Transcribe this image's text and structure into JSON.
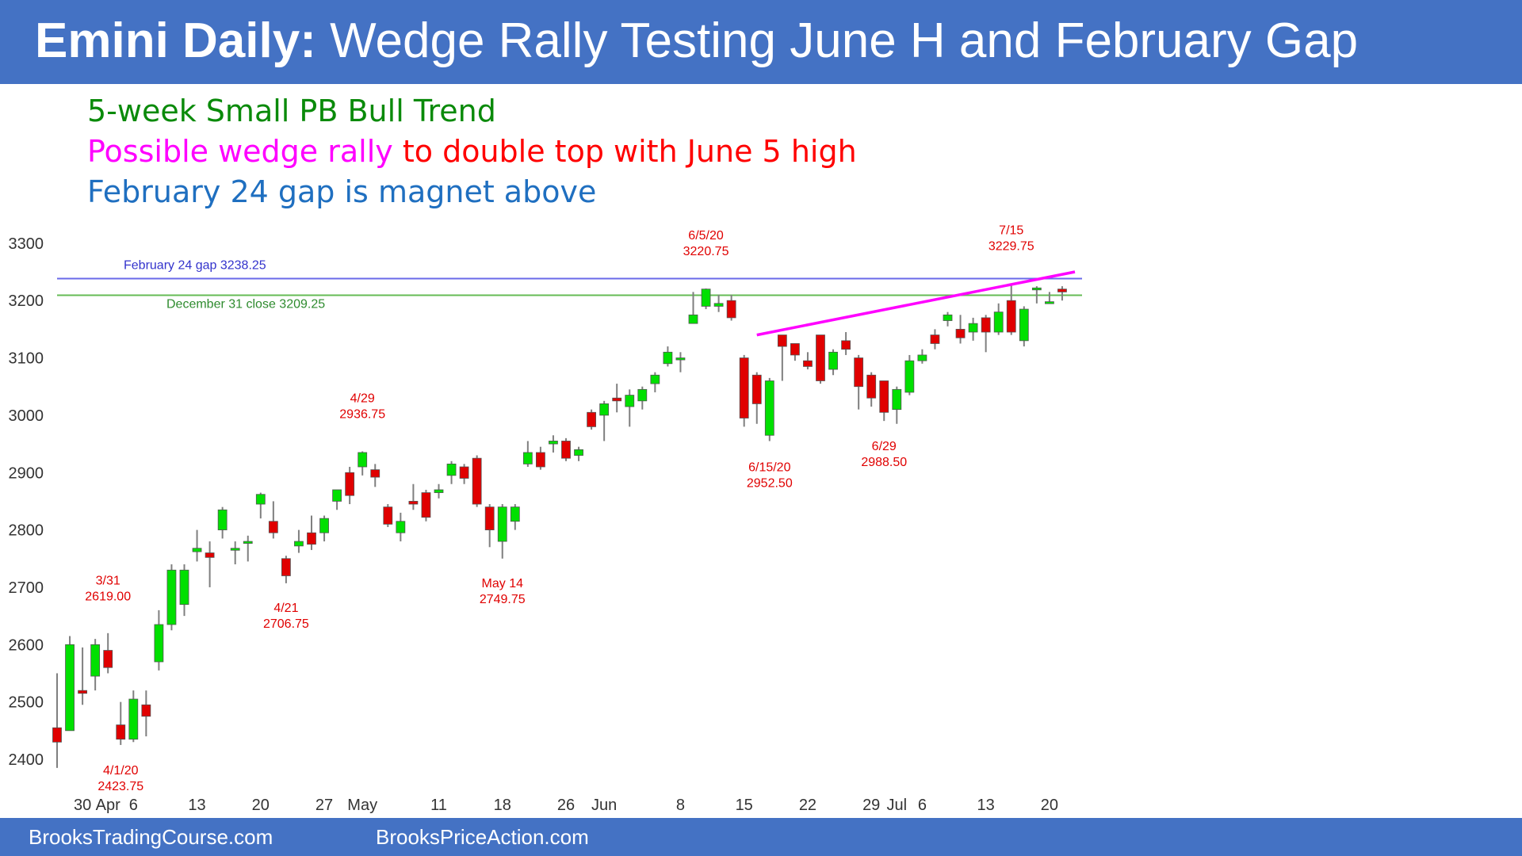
{
  "title": {
    "bold": "Emini Daily:",
    "rest": " Wedge Rally Testing June H and February Gap"
  },
  "notes": {
    "line1": "5-week Small PB Bull Trend",
    "line2_part1": "Possible wedge rally",
    "line2_part2": " to double top with June 5 high",
    "line3": "February 24 gap is magnet above"
  },
  "footer": {
    "left": "BrooksTradingCourse.com",
    "right": "BrooksPriceAction.com"
  },
  "colors": {
    "bar": "#4472c4",
    "bull": "#00e000",
    "bear": "#e00000",
    "green_text": "#0a8a0a",
    "magenta": "#ff00ff",
    "red": "#ff0000",
    "blue_text": "#1f6fc0",
    "gap_line": "#6a6ae8",
    "close_line": "#66bb55"
  },
  "chart_data": {
    "type": "candlestick",
    "ylim": [
      2380,
      3300
    ],
    "y_ticks": [
      2400,
      2500,
      2600,
      2700,
      2800,
      2900,
      3000,
      3100,
      3200,
      3300
    ],
    "x_ticks": [
      {
        "label": "30",
        "i": 2
      },
      {
        "label": "Apr",
        "i": 4
      },
      {
        "label": "6",
        "i": 6
      },
      {
        "label": "13",
        "i": 11
      },
      {
        "label": "20",
        "i": 16
      },
      {
        "label": "27",
        "i": 21
      },
      {
        "label": "May",
        "i": 24
      },
      {
        "label": "11",
        "i": 30
      },
      {
        "label": "18",
        "i": 35
      },
      {
        "label": "26",
        "i": 40
      },
      {
        "label": "Jun",
        "i": 43
      },
      {
        "label": "8",
        "i": 49
      },
      {
        "label": "15",
        "i": 54
      },
      {
        "label": "22",
        "i": 59
      },
      {
        "label": "29",
        "i": 64
      },
      {
        "label": "Jul",
        "i": 66
      },
      {
        "label": "6",
        "i": 68
      },
      {
        "label": "13",
        "i": 73
      },
      {
        "label": "20",
        "i": 78
      }
    ],
    "hlines": [
      {
        "name": "February 24 gap",
        "label": "February 24 gap 3238.25",
        "value": 3238.25
      },
      {
        "name": "December 31 close",
        "label": "December 31 close 3209.25",
        "value": 3209.25
      }
    ],
    "trendline": {
      "from": {
        "i": 55,
        "value": 3140
      },
      "to": {
        "i": 80,
        "value": 3250
      }
    },
    "candles": [
      [
        2455,
        2430,
        2550,
        2385
      ],
      [
        2450,
        2600,
        2615,
        2480
      ],
      [
        2520,
        2515,
        2595,
        2495
      ],
      [
        2545,
        2600,
        2610,
        2520
      ],
      [
        2590,
        2560,
        2620,
        2550
      ],
      [
        2460,
        2435,
        2500,
        2425
      ],
      [
        2435,
        2505,
        2520,
        2430
      ],
      [
        2495,
        2475,
        2520,
        2440
      ],
      [
        2570,
        2635,
        2660,
        2555
      ],
      [
        2635,
        2730,
        2740,
        2625
      ],
      [
        2670,
        2730,
        2740,
        2650
      ],
      [
        2762,
        2768,
        2800,
        2745
      ],
      [
        2760,
        2752,
        2780,
        2700
      ],
      [
        2800,
        2835,
        2840,
        2785
      ],
      [
        2765,
        2768,
        2780,
        2740
      ],
      [
        2778,
        2780,
        2790,
        2745
      ],
      [
        2845,
        2862,
        2865,
        2820
      ],
      [
        2815,
        2795,
        2850,
        2785
      ],
      [
        2750,
        2720,
        2755,
        2707
      ],
      [
        2772,
        2780,
        2800,
        2760
      ],
      [
        2795,
        2775,
        2825,
        2765
      ],
      [
        2795,
        2820,
        2825,
        2780
      ],
      [
        2850,
        2870,
        2870,
        2835
      ],
      [
        2900,
        2860,
        2910,
        2845
      ],
      [
        2910,
        2935,
        2937,
        2895
      ],
      [
        2905,
        2892,
        2915,
        2875
      ],
      [
        2840,
        2810,
        2845,
        2805
      ],
      [
        2795,
        2815,
        2830,
        2780
      ],
      [
        2850,
        2845,
        2880,
        2835
      ],
      [
        2865,
        2822,
        2870,
        2815
      ],
      [
        2865,
        2870,
        2880,
        2855
      ],
      [
        2895,
        2915,
        2920,
        2880
      ],
      [
        2910,
        2890,
        2915,
        2880
      ],
      [
        2925,
        2845,
        2930,
        2840
      ],
      [
        2840,
        2800,
        2845,
        2770
      ],
      [
        2780,
        2840,
        2845,
        2750
      ],
      [
        2815,
        2840,
        2845,
        2800
      ],
      [
        2915,
        2935,
        2955,
        2910
      ],
      [
        2935,
        2910,
        2945,
        2905
      ],
      [
        2950,
        2955,
        2965,
        2935
      ],
      [
        2955,
        2925,
        2960,
        2920
      ],
      [
        2930,
        2940,
        2945,
        2920
      ],
      [
        3005,
        2980,
        3010,
        2975
      ],
      [
        3000,
        3020,
        3025,
        2955
      ],
      [
        3030,
        3025,
        3055,
        3005
      ],
      [
        3015,
        3035,
        3045,
        2980
      ],
      [
        3025,
        3045,
        3050,
        3010
      ],
      [
        3055,
        3070,
        3075,
        3040
      ],
      [
        3090,
        3110,
        3120,
        3085
      ],
      [
        3100,
        3100,
        3110,
        3075
      ],
      [
        3160,
        3175,
        3215,
        3160
      ],
      [
        3190,
        3220,
        3221,
        3185
      ],
      [
        3190,
        3195,
        3210,
        3180
      ],
      [
        3200,
        3170,
        3210,
        3165
      ],
      [
        3100,
        2995,
        3105,
        2980
      ],
      [
        3070,
        3020,
        3075,
        2985
      ],
      [
        2965,
        3060,
        3065,
        2955
      ],
      [
        3140,
        3120,
        3140,
        3060
      ],
      [
        3125,
        3105,
        3125,
        3095
      ],
      [
        3095,
        3085,
        3110,
        3080
      ],
      [
        3140,
        3060,
        3140,
        3055
      ],
      [
        3080,
        3110,
        3115,
        3070
      ],
      [
        3130,
        3115,
        3145,
        3105
      ],
      [
        3100,
        3050,
        3105,
        3010
      ],
      [
        3070,
        3030,
        3075,
        3015
      ],
      [
        3060,
        3005,
        3060,
        2990
      ],
      [
        3010,
        3045,
        3050,
        2985
      ],
      [
        3040,
        3095,
        3105,
        3035
      ],
      [
        3095,
        3105,
        3115,
        3090
      ],
      [
        3140,
        3125,
        3150,
        3115
      ],
      [
        3165,
        3175,
        3180,
        3155
      ],
      [
        3150,
        3135,
        3175,
        3125
      ],
      [
        3145,
        3160,
        3170,
        3130
      ],
      [
        3170,
        3145,
        3175,
        3110
      ],
      [
        3145,
        3180,
        3195,
        3140
      ],
      [
        3200,
        3145,
        3230,
        3140
      ],
      [
        3130,
        3185,
        3190,
        3120
      ],
      [
        3220,
        3222,
        3225,
        3195
      ],
      [
        3198,
        3198,
        3215,
        3195
      ],
      [
        3220,
        3215,
        3225,
        3200
      ]
    ],
    "annotations": [
      {
        "i": 4,
        "price": 2619.0,
        "date": "3/31",
        "label": "2619.00",
        "pos": "above"
      },
      {
        "i": 5,
        "price": 2423.75,
        "date": "4/1/20",
        "label": "2423.75",
        "pos": "below"
      },
      {
        "i": 18,
        "price": 2706.75,
        "date": "4/21",
        "label": "2706.75",
        "pos": "below"
      },
      {
        "i": 24,
        "price": 2936.75,
        "date": "4/29",
        "label": "2936.75",
        "pos": "above"
      },
      {
        "i": 35,
        "price": 2749.75,
        "date": "May 14",
        "label": "2749.75",
        "pos": "below"
      },
      {
        "i": 51,
        "price": 3220.75,
        "date": "6/5/20",
        "label": "3220.75",
        "pos": "above"
      },
      {
        "i": 56,
        "price": 2952.5,
        "date": "6/15/20",
        "label": "2952.50",
        "pos": "below"
      },
      {
        "i": 65,
        "price": 2988.5,
        "date": "6/29",
        "label": "2988.50",
        "pos": "below"
      },
      {
        "i": 75,
        "price": 3229.75,
        "date": "7/15",
        "label": "3229.75",
        "pos": "above"
      }
    ]
  }
}
